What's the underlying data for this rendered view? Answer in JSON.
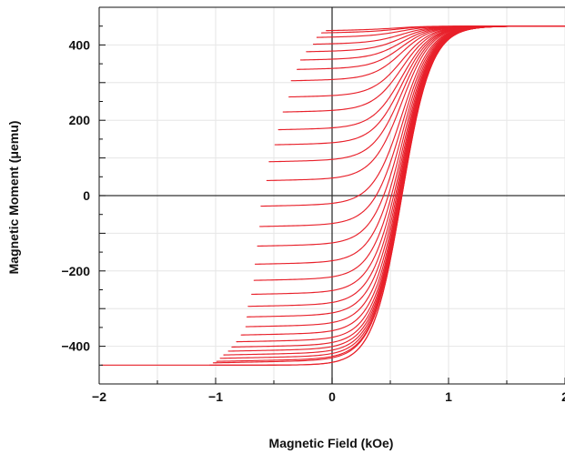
{
  "chart_data": {
    "type": "line",
    "title": "",
    "xlabel": "Magnetic Field (kOe)",
    "ylabel": "Magnetic Moment (μemu)",
    "xlim": [
      -2,
      2
    ],
    "ylim": [
      -500,
      500
    ],
    "xticks": [
      -2,
      -1,
      0,
      1,
      2
    ],
    "xtick_labels": [
      "−2",
      "−1",
      "0",
      "1",
      "2"
    ],
    "yticks": [
      -400,
      -200,
      0,
      200,
      400
    ],
    "ytick_labels": [
      "−400",
      "−200",
      "0",
      "200",
      "400"
    ],
    "grid": true,
    "legend": "none",
    "color": "#e8202a",
    "description": "Family of first-order reversal curves; each curve starts at a reversal field and moment and rises to saturation at about 450 μemu.",
    "saturation_moment": 450,
    "reversal_points": [
      {
        "x": -1.98,
        "y": -452
      },
      {
        "x": -1.05,
        "y": -448
      },
      {
        "x": -1.02,
        "y": -444
      },
      {
        "x": -0.99,
        "y": -440
      },
      {
        "x": -0.96,
        "y": -432
      },
      {
        "x": -0.93,
        "y": -423
      },
      {
        "x": -0.89,
        "y": -413
      },
      {
        "x": -0.86,
        "y": -402
      },
      {
        "x": -0.82,
        "y": -388
      },
      {
        "x": -0.78,
        "y": -370
      },
      {
        "x": -0.74,
        "y": -348
      },
      {
        "x": -0.73,
        "y": -322
      },
      {
        "x": -0.72,
        "y": -294
      },
      {
        "x": -0.69,
        "y": -262
      },
      {
        "x": -0.67,
        "y": -225
      },
      {
        "x": -0.66,
        "y": -182
      },
      {
        "x": -0.64,
        "y": -134
      },
      {
        "x": -0.62,
        "y": -82
      },
      {
        "x": -0.61,
        "y": -28
      },
      {
        "x": -0.56,
        "y": 40
      },
      {
        "x": -0.54,
        "y": 90
      },
      {
        "x": -0.49,
        "y": 135
      },
      {
        "x": -0.46,
        "y": 175
      },
      {
        "x": -0.42,
        "y": 222
      },
      {
        "x": -0.37,
        "y": 262
      },
      {
        "x": -0.35,
        "y": 305
      },
      {
        "x": -0.3,
        "y": 335
      },
      {
        "x": -0.27,
        "y": 360
      },
      {
        "x": -0.22,
        "y": 382
      },
      {
        "x": -0.16,
        "y": 402
      },
      {
        "x": -0.13,
        "y": 420
      },
      {
        "x": -0.09,
        "y": 432
      },
      {
        "x": -0.05,
        "y": 438
      }
    ]
  }
}
